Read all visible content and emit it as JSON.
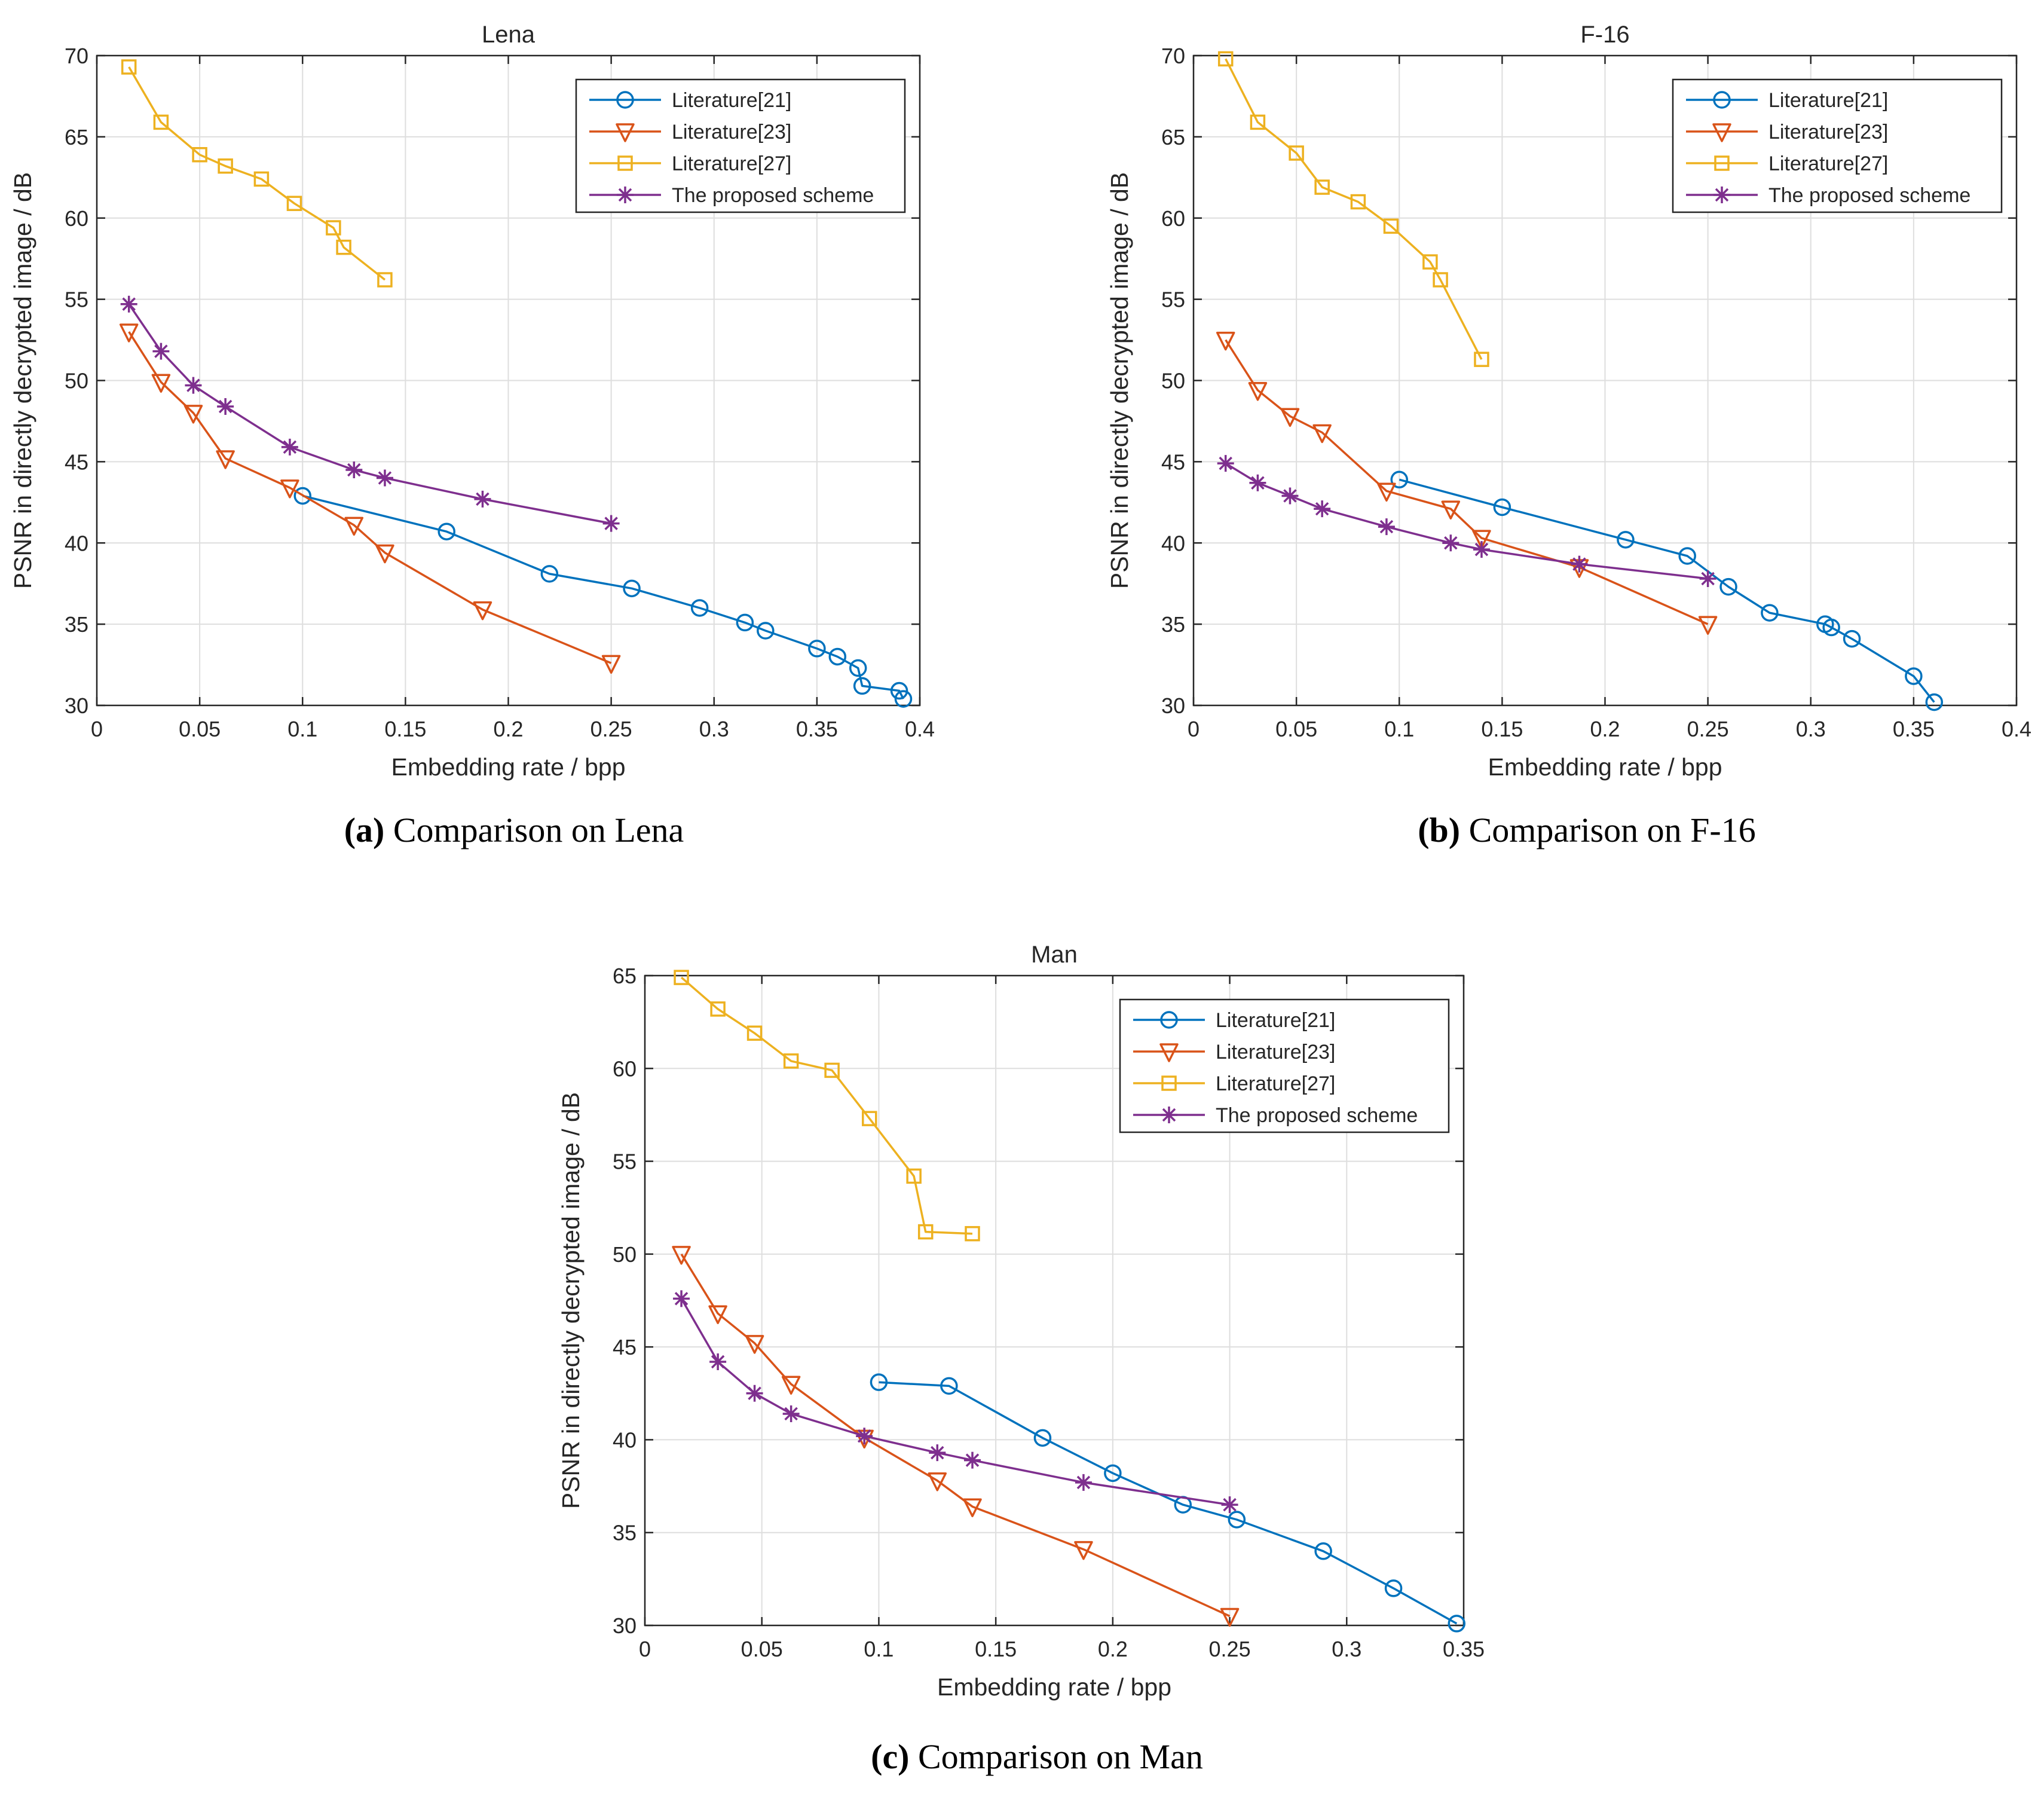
{
  "colors": {
    "lit21": "#0072BD",
    "lit23": "#D95319",
    "lit27": "#EDB120",
    "proposed": "#7E2F8E",
    "grid": "#dedede",
    "axis": "#262626"
  },
  "captions": [
    {
      "label": "(a)",
      "text": " Comparison on Lena"
    },
    {
      "label": "(b)",
      "text": " Comparison on F-16"
    },
    {
      "label": "(c)",
      "text": " Comparison on Man"
    }
  ],
  "chart_data": [
    {
      "type": "line",
      "title": "Lena",
      "xlabel": "Embedding rate / bpp",
      "ylabel": "PSNR in directly decrypted image / dB",
      "xlim": [
        0,
        0.4
      ],
      "ylim": [
        30,
        70
      ],
      "xticks": [
        0,
        0.05,
        0.1,
        0.15,
        0.2,
        0.25,
        0.3,
        0.35,
        0.4
      ],
      "xtick_labels": [
        "0",
        "0.05",
        "0.1",
        "0.15",
        "0.2",
        "0.25",
        "0.3",
        "0.35",
        "0.4"
      ],
      "yticks": [
        30,
        35,
        40,
        45,
        50,
        55,
        60,
        65,
        70
      ],
      "ytick_labels": [
        "30",
        "35",
        "40",
        "45",
        "50",
        "55",
        "60",
        "65",
        "70"
      ],
      "grid": true,
      "legend_position": "top-right",
      "series": [
        {
          "name": "Literature[21]",
          "marker": "circle",
          "color_key": "lit21",
          "x": [
            0.1,
            0.17,
            0.22,
            0.26,
            0.293,
            0.315,
            0.325,
            0.35,
            0.36,
            0.37,
            0.372,
            0.39,
            0.392
          ],
          "y": [
            42.9,
            40.7,
            38.1,
            37.2,
            36.0,
            35.1,
            34.6,
            33.5,
            33.0,
            32.3,
            31.2,
            30.9,
            30.4
          ]
        },
        {
          "name": "Literature[23]",
          "marker": "triangle-down",
          "color_key": "lit23",
          "x": [
            0.0156,
            0.0312,
            0.0469,
            0.0625,
            0.0938,
            0.125,
            0.14,
            0.1875,
            0.25
          ],
          "y": [
            53.0,
            49.9,
            48.0,
            45.2,
            43.4,
            41.1,
            39.4,
            35.9,
            32.6
          ]
        },
        {
          "name": "Literature[27]",
          "marker": "square",
          "color_key": "lit27",
          "x": [
            0.0156,
            0.0312,
            0.05,
            0.0625,
            0.08,
            0.096,
            0.115,
            0.12,
            0.14
          ],
          "y": [
            69.3,
            65.9,
            63.9,
            63.2,
            62.4,
            60.9,
            59.4,
            58.2,
            56.2
          ]
        },
        {
          "name": "The proposed scheme",
          "marker": "asterisk",
          "color_key": "proposed",
          "x": [
            0.0156,
            0.0312,
            0.0469,
            0.0625,
            0.0938,
            0.125,
            0.14,
            0.1875,
            0.25
          ],
          "y": [
            54.7,
            51.8,
            49.7,
            48.4,
            45.9,
            44.5,
            44.0,
            42.7,
            41.2
          ]
        }
      ]
    },
    {
      "type": "line",
      "title": "F-16",
      "xlabel": "Embedding rate / bpp",
      "ylabel": "PSNR in directly decrypted image / dB",
      "xlim": [
        0,
        0.4
      ],
      "ylim": [
        30,
        70
      ],
      "xticks": [
        0,
        0.05,
        0.1,
        0.15,
        0.2,
        0.25,
        0.3,
        0.35,
        0.4
      ],
      "xtick_labels": [
        "0",
        "0.05",
        "0.1",
        "0.15",
        "0.2",
        "0.25",
        "0.3",
        "0.35",
        "0.4"
      ],
      "yticks": [
        30,
        35,
        40,
        45,
        50,
        55,
        60,
        65,
        70
      ],
      "ytick_labels": [
        "30",
        "35",
        "40",
        "45",
        "50",
        "55",
        "60",
        "65",
        "70"
      ],
      "grid": true,
      "legend_position": "top-right",
      "series": [
        {
          "name": "Literature[21]",
          "marker": "circle",
          "color_key": "lit21",
          "x": [
            0.1,
            0.15,
            0.21,
            0.24,
            0.26,
            0.28,
            0.307,
            0.31,
            0.32,
            0.35,
            0.36
          ],
          "y": [
            43.9,
            42.2,
            40.2,
            39.2,
            37.3,
            35.7,
            35.0,
            34.8,
            34.1,
            31.8,
            30.2
          ]
        },
        {
          "name": "Literature[23]",
          "marker": "triangle-down",
          "color_key": "lit23",
          "x": [
            0.0156,
            0.0312,
            0.0469,
            0.0625,
            0.0938,
            0.125,
            0.14,
            0.1875,
            0.25
          ],
          "y": [
            52.5,
            49.4,
            47.8,
            46.8,
            43.2,
            42.1,
            40.3,
            38.5,
            35.0
          ]
        },
        {
          "name": "Literature[27]",
          "marker": "square",
          "color_key": "lit27",
          "x": [
            0.0156,
            0.0312,
            0.05,
            0.0625,
            0.08,
            0.096,
            0.115,
            0.12,
            0.14
          ],
          "y": [
            69.8,
            65.9,
            64.0,
            61.9,
            61.0,
            59.5,
            57.3,
            56.2,
            51.3
          ]
        },
        {
          "name": "The proposed scheme",
          "marker": "asterisk",
          "color_key": "proposed",
          "x": [
            0.0156,
            0.0312,
            0.0469,
            0.0625,
            0.0938,
            0.125,
            0.14,
            0.1875,
            0.25
          ],
          "y": [
            44.9,
            43.7,
            42.9,
            42.1,
            41.0,
            40.0,
            39.6,
            38.7,
            37.8
          ]
        }
      ]
    },
    {
      "type": "line",
      "title": "Man",
      "xlabel": "Embedding rate / bpp",
      "ylabel": "PSNR in directly decrypted image / dB",
      "xlim": [
        0,
        0.35
      ],
      "ylim": [
        30,
        65
      ],
      "xticks": [
        0,
        0.05,
        0.1,
        0.15,
        0.2,
        0.25,
        0.3,
        0.35
      ],
      "xtick_labels": [
        "0",
        "0.05",
        "0.1",
        "0.15",
        "0.2",
        "0.25",
        "0.3",
        "0.35"
      ],
      "yticks": [
        30,
        35,
        40,
        45,
        50,
        55,
        60,
        65
      ],
      "ytick_labels": [
        "30",
        "35",
        "40",
        "45",
        "50",
        "55",
        "60",
        "65"
      ],
      "grid": true,
      "legend_position": "top-right",
      "series": [
        {
          "name": "Literature[21]",
          "marker": "circle",
          "color_key": "lit21",
          "x": [
            0.1,
            0.13,
            0.17,
            0.2,
            0.23,
            0.253,
            0.29,
            0.32,
            0.347
          ],
          "y": [
            43.1,
            42.9,
            40.1,
            38.2,
            36.5,
            35.7,
            34.0,
            32.0,
            30.1
          ]
        },
        {
          "name": "Literature[23]",
          "marker": "triangle-down",
          "color_key": "lit23",
          "x": [
            0.0156,
            0.0312,
            0.0469,
            0.0625,
            0.0938,
            0.125,
            0.14,
            0.1875,
            0.25
          ],
          "y": [
            50.0,
            46.8,
            45.2,
            43.0,
            40.1,
            37.8,
            36.4,
            34.1,
            30.5
          ]
        },
        {
          "name": "Literature[27]",
          "marker": "square",
          "color_key": "lit27",
          "x": [
            0.0156,
            0.0312,
            0.0469,
            0.0625,
            0.08,
            0.096,
            0.115,
            0.12,
            0.14
          ],
          "y": [
            64.9,
            63.2,
            61.9,
            60.4,
            59.9,
            57.3,
            54.2,
            51.2,
            51.1
          ]
        },
        {
          "name": "The proposed scheme",
          "marker": "asterisk",
          "color_key": "proposed",
          "x": [
            0.0156,
            0.0312,
            0.0469,
            0.0625,
            0.0938,
            0.125,
            0.14,
            0.1875,
            0.25
          ],
          "y": [
            47.6,
            44.2,
            42.5,
            41.4,
            40.2,
            39.3,
            38.9,
            37.7,
            36.5
          ]
        }
      ]
    }
  ]
}
